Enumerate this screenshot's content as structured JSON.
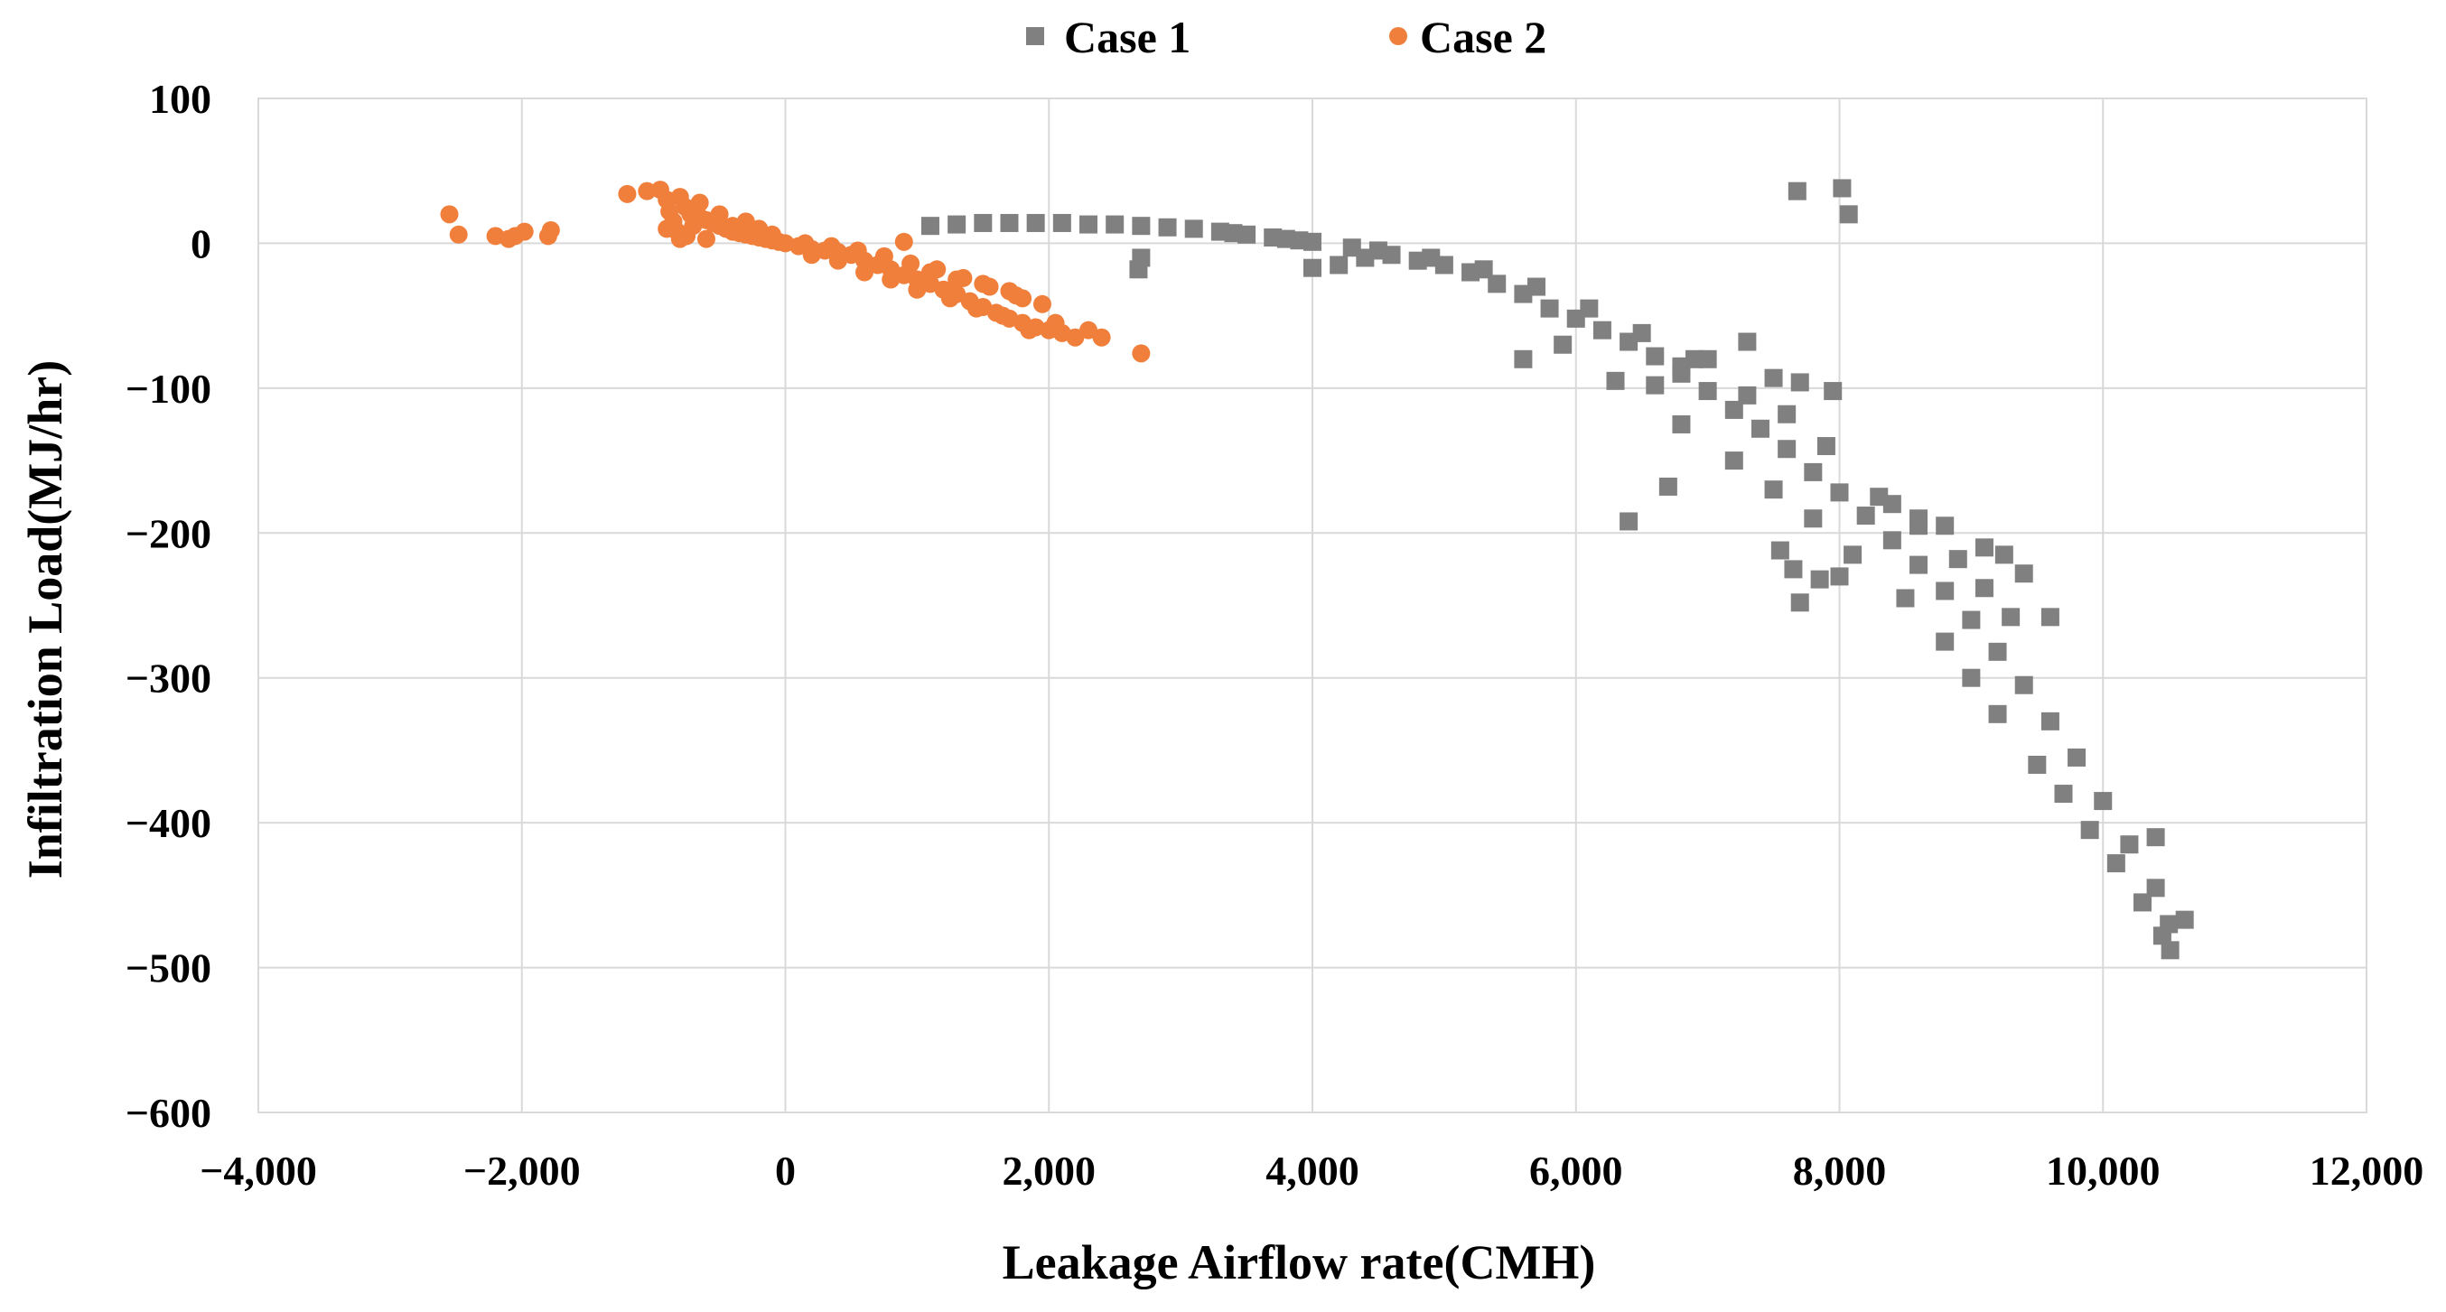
{
  "chart_data": {
    "type": "scatter",
    "title": "",
    "xlabel": "Leakage Airflow rate(CMH)",
    "ylabel": "Infiltration Load(MJ/hr)",
    "xlim": [
      -4000,
      12000
    ],
    "ylim": [
      -600,
      100
    ],
    "x_ticks": [
      -4000,
      -2000,
      0,
      2000,
      4000,
      6000,
      8000,
      10000,
      12000
    ],
    "x_tick_labels": [
      "−4,000",
      "−2,000",
      "0",
      "2,000",
      "4,000",
      "6,000",
      "8,000",
      "10,000",
      "12,000"
    ],
    "y_ticks": [
      100,
      0,
      -100,
      -200,
      -300,
      -400,
      -500,
      -600
    ],
    "y_tick_labels": [
      "100",
      "0",
      "−100",
      "−200",
      "−300",
      "−400",
      "−500",
      "−600"
    ],
    "grid": true,
    "legend_position": "top-center",
    "series": [
      {
        "name": "Case 1",
        "marker": "square",
        "color": "#808080",
        "points": [
          [
            1100,
            12
          ],
          [
            1300,
            13
          ],
          [
            1500,
            14
          ],
          [
            1700,
            14
          ],
          [
            1900,
            14
          ],
          [
            2100,
            14
          ],
          [
            2300,
            13
          ],
          [
            2500,
            13
          ],
          [
            2700,
            12
          ],
          [
            2900,
            11
          ],
          [
            3100,
            10
          ],
          [
            3300,
            8
          ],
          [
            3500,
            6
          ],
          [
            3700,
            4
          ],
          [
            3900,
            2
          ],
          [
            4000,
            1
          ],
          [
            2700,
            -10
          ],
          [
            2680,
            -18
          ],
          [
            4000,
            -17
          ],
          [
            4200,
            -15
          ],
          [
            4400,
            -10
          ],
          [
            4600,
            -8
          ],
          [
            4800,
            -12
          ],
          [
            5000,
            -15
          ],
          [
            5200,
            -20
          ],
          [
            5400,
            -28
          ],
          [
            5600,
            -35
          ],
          [
            5800,
            -45
          ],
          [
            6000,
            -52
          ],
          [
            6200,
            -60
          ],
          [
            6400,
            -68
          ],
          [
            6600,
            -78
          ],
          [
            6800,
            -90
          ],
          [
            7000,
            -102
          ],
          [
            7200,
            -115
          ],
          [
            7400,
            -128
          ],
          [
            7600,
            -142
          ],
          [
            7800,
            -158
          ],
          [
            8000,
            -172
          ],
          [
            8200,
            -188
          ],
          [
            8400,
            -205
          ],
          [
            8600,
            -222
          ],
          [
            8800,
            -240
          ],
          [
            9000,
            -260
          ],
          [
            9200,
            -282
          ],
          [
            9400,
            -305
          ],
          [
            9600,
            -330
          ],
          [
            9800,
            -355
          ],
          [
            10000,
            -385
          ],
          [
            10200,
            -415
          ],
          [
            10400,
            -445
          ],
          [
            10500,
            -470
          ],
          [
            10620,
            -467
          ],
          [
            10510,
            -488
          ],
          [
            10400,
            -410
          ],
          [
            9600,
            -258
          ],
          [
            9400,
            -228
          ],
          [
            9250,
            -215
          ],
          [
            9100,
            -210
          ],
          [
            8800,
            -195
          ],
          [
            8600,
            -190
          ],
          [
            8400,
            -180
          ],
          [
            7950,
            -102
          ],
          [
            7700,
            -96
          ],
          [
            7500,
            -93
          ],
          [
            7300,
            -68
          ],
          [
            7000,
            -80
          ],
          [
            6800,
            -85
          ],
          [
            6600,
            -98
          ],
          [
            6400,
            -192
          ],
          [
            6700,
            -168
          ],
          [
            7700,
            -248
          ],
          [
            7850,
            -232
          ],
          [
            8000,
            -230
          ],
          [
            7650,
            -225
          ],
          [
            7550,
            -212
          ],
          [
            7680,
            36
          ],
          [
            8020,
            38
          ],
          [
            8070,
            20
          ],
          [
            5600,
            -80
          ],
          [
            5900,
            -70
          ],
          [
            6300,
            -95
          ],
          [
            6800,
            -125
          ],
          [
            7200,
            -150
          ],
          [
            7500,
            -170
          ],
          [
            7800,
            -190
          ],
          [
            8100,
            -215
          ],
          [
            8500,
            -245
          ],
          [
            8800,
            -275
          ],
          [
            9000,
            -300
          ],
          [
            9200,
            -325
          ],
          [
            9500,
            -360
          ],
          [
            9700,
            -380
          ],
          [
            9900,
            -405
          ],
          [
            10100,
            -428
          ],
          [
            10300,
            -455
          ],
          [
            10450,
            -478
          ],
          [
            9300,
            -258
          ],
          [
            9100,
            -238
          ],
          [
            8900,
            -218
          ],
          [
            8600,
            -195
          ],
          [
            8300,
            -175
          ],
          [
            7900,
            -140
          ],
          [
            7600,
            -118
          ],
          [
            7300,
            -105
          ],
          [
            6900,
            -80
          ],
          [
            6500,
            -62
          ],
          [
            6100,
            -45
          ],
          [
            5700,
            -30
          ],
          [
            5300,
            -18
          ],
          [
            4900,
            -10
          ],
          [
            4500,
            -5
          ],
          [
            4300,
            -3
          ],
          [
            3800,
            3
          ],
          [
            3400,
            7
          ]
        ]
      },
      {
        "name": "Case 2",
        "marker": "circle",
        "color": "#f07f3c",
        "points": [
          [
            -2550,
            20
          ],
          [
            -2480,
            6
          ],
          [
            -2200,
            5
          ],
          [
            -2100,
            3
          ],
          [
            -2050,
            5
          ],
          [
            -1980,
            8
          ],
          [
            -1800,
            5
          ],
          [
            -1780,
            9
          ],
          [
            -1200,
            34
          ],
          [
            -1050,
            36
          ],
          [
            -950,
            37
          ],
          [
            -900,
            30
          ],
          [
            -880,
            22
          ],
          [
            -850,
            15
          ],
          [
            -820,
            8
          ],
          [
            -800,
            3
          ],
          [
            -760,
            25
          ],
          [
            -720,
            20
          ],
          [
            -700,
            12
          ],
          [
            -650,
            18
          ],
          [
            -600,
            16
          ],
          [
            -550,
            14
          ],
          [
            -500,
            12
          ],
          [
            -450,
            10
          ],
          [
            -400,
            8
          ],
          [
            -350,
            7
          ],
          [
            -300,
            6
          ],
          [
            -250,
            5
          ],
          [
            -200,
            4
          ],
          [
            -150,
            3
          ],
          [
            -100,
            2
          ],
          [
            -50,
            1
          ],
          [
            0,
            0
          ],
          [
            100,
            -2
          ],
          [
            200,
            -4
          ],
          [
            300,
            -5
          ],
          [
            400,
            -6
          ],
          [
            500,
            -8
          ],
          [
            600,
            -12
          ],
          [
            700,
            -15
          ],
          [
            800,
            -18
          ],
          [
            900,
            -22
          ],
          [
            1000,
            -25
          ],
          [
            1100,
            -28
          ],
          [
            1200,
            -32
          ],
          [
            1300,
            -35
          ],
          [
            1400,
            -40
          ],
          [
            1500,
            -44
          ],
          [
            1600,
            -48
          ],
          [
            1700,
            -52
          ],
          [
            1800,
            -55
          ],
          [
            1900,
            -58
          ],
          [
            2000,
            -60
          ],
          [
            2100,
            -62
          ],
          [
            2200,
            -65
          ],
          [
            2300,
            -60
          ],
          [
            2400,
            -65
          ],
          [
            2700,
            -76
          ],
          [
            900,
            1
          ],
          [
            1800,
            -38
          ],
          [
            1700,
            -33
          ],
          [
            1500,
            -28
          ],
          [
            1300,
            -25
          ],
          [
            1100,
            -20
          ],
          [
            -900,
            10
          ],
          [
            -750,
            5
          ],
          [
            -600,
            3
          ],
          [
            -400,
            12
          ],
          [
            -300,
            15
          ],
          [
            -200,
            10
          ],
          [
            -100,
            6
          ],
          [
            150,
            0
          ],
          [
            350,
            -2
          ],
          [
            550,
            -5
          ],
          [
            750,
            -9
          ],
          [
            950,
            -14
          ],
          [
            1150,
            -18
          ],
          [
            1350,
            -24
          ],
          [
            1550,
            -30
          ],
          [
            1750,
            -36
          ],
          [
            1950,
            -42
          ],
          [
            2050,
            -55
          ],
          [
            1250,
            -38
          ],
          [
            1450,
            -45
          ],
          [
            1650,
            -50
          ],
          [
            1850,
            -60
          ],
          [
            600,
            -20
          ],
          [
            400,
            -12
          ],
          [
            800,
            -25
          ],
          [
            1000,
            -32
          ],
          [
            200,
            -8
          ],
          [
            -500,
            20
          ],
          [
            -650,
            28
          ],
          [
            -800,
            32
          ]
        ]
      }
    ]
  }
}
